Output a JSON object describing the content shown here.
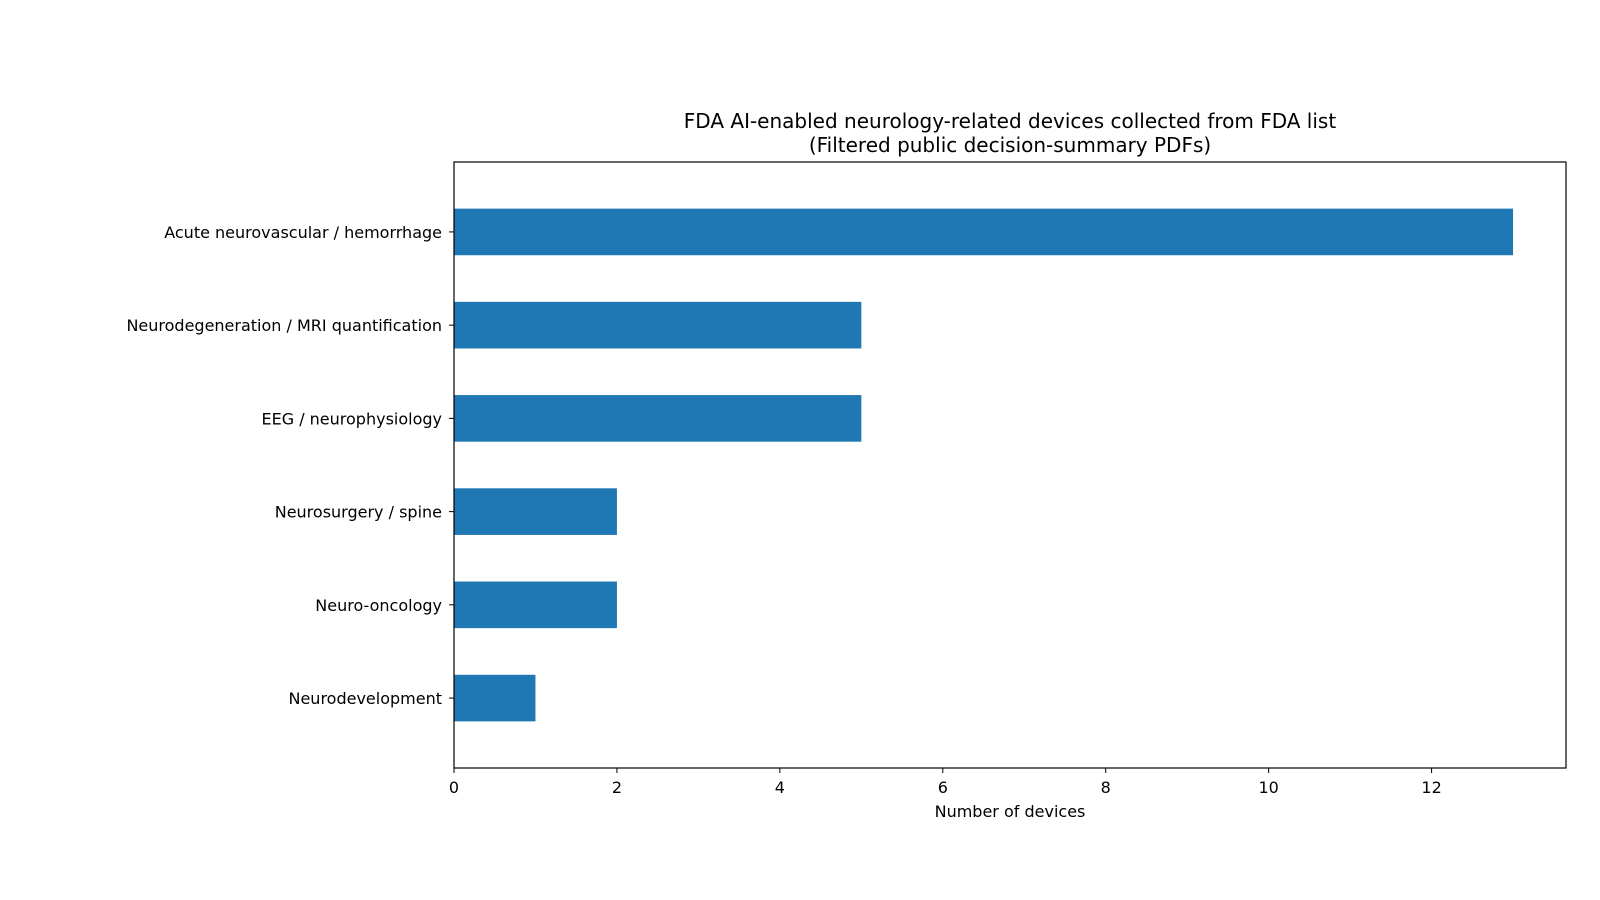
{
  "chart_data": {
    "type": "bar",
    "orientation": "horizontal",
    "title": "FDA AI-enabled neurology-related devices collected from FDA list",
    "subtitle": "(Filtered public decision-summary PDFs)",
    "xlabel": "Number of devices",
    "ylabel": "",
    "categories": [
      "Acute neurovascular / hemorrhage",
      "Neurodegeneration / MRI quantification",
      "EEG / neurophysiology",
      "Neurosurgery / spine",
      "Neuro-oncology",
      "Neurodevelopment"
    ],
    "values": [
      13,
      5,
      5,
      2,
      2,
      1
    ],
    "xlim": [
      0,
      13.65
    ],
    "xticks": [
      0,
      2,
      4,
      6,
      8,
      10,
      12
    ],
    "grid": false,
    "legend": "none",
    "bar_color": "#1f77b4"
  }
}
